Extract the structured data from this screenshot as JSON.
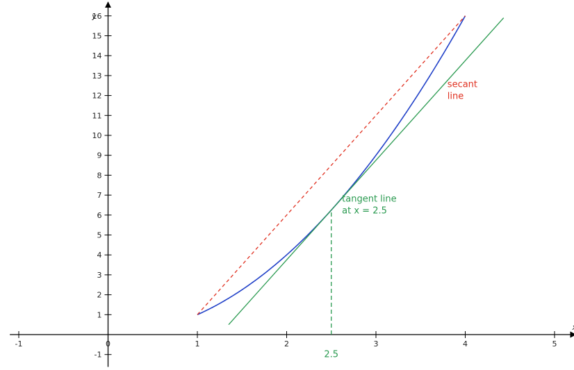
{
  "chart_data": {
    "type": "line",
    "title": "",
    "xlabel": "x",
    "ylabel": "y",
    "xlim": [
      -1.1,
      5.2
    ],
    "ylim": [
      -1.2,
      16.3
    ],
    "x_ticks": [
      -1,
      0,
      1,
      2,
      3,
      4,
      5
    ],
    "x_tick_labels": [
      "-1",
      "0",
      "1",
      "2",
      "3",
      "4",
      "5"
    ],
    "y_ticks": [
      -1,
      1,
      2,
      3,
      4,
      5,
      6,
      7,
      8,
      9,
      10,
      11,
      12,
      13,
      14,
      15,
      16
    ],
    "y_tick_labels": [
      "-1",
      "1",
      "2",
      "3",
      "4",
      "5",
      "6",
      "7",
      "8",
      "9",
      "10",
      "11",
      "12",
      "13",
      "14",
      "15",
      "16"
    ],
    "grid": false,
    "series": [
      {
        "role": "curve",
        "color": "#2040c8",
        "style": "solid",
        "x": [
          1,
          1.5,
          2,
          2.5,
          3,
          3.5,
          4
        ],
        "y": [
          1,
          2.25,
          4,
          6.25,
          9,
          12.25,
          16
        ]
      },
      {
        "role": "secant",
        "color": "#e03020",
        "style": "dashed",
        "x": [
          1,
          4
        ],
        "y": [
          1,
          16
        ]
      },
      {
        "role": "tangent",
        "color": "#2a9a50",
        "style": "solid",
        "x": [
          1.35,
          4.43
        ],
        "y": [
          0.5,
          15.9
        ]
      },
      {
        "role": "vertical-marker",
        "color": "#2a9a50",
        "style": "dashed",
        "x": [
          2.5,
          2.5
        ],
        "y": [
          0,
          6.25
        ]
      }
    ],
    "annotations": [
      {
        "name": "secant-label",
        "lines": [
          "secant",
          "line"
        ],
        "color": "#e03020",
        "x": 3.8,
        "y": 12.0
      },
      {
        "name": "tangent-label",
        "lines": [
          "tangent line",
          "at x = 2.5"
        ],
        "color": "#2a9a50",
        "x": 2.62,
        "y": 6.25
      },
      {
        "name": "marker-label",
        "lines": [
          "2.5"
        ],
        "color": "#2a9a50",
        "x": 2.5,
        "y": -1.0
      }
    ]
  }
}
